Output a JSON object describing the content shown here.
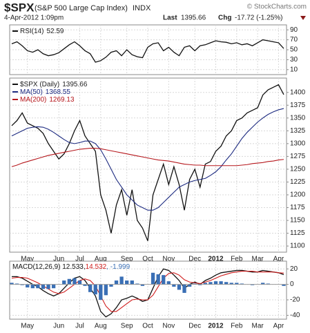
{
  "header": {
    "symbol": "$SPX",
    "description": "(S&P 500 Large Cap Index)",
    "exchange": "INDX",
    "credit": "© StockCharts.com",
    "date": "4-Apr-2012 1:09pm",
    "last_label": "Last",
    "last": "1395.66",
    "chg_label": "Chg",
    "chg": "-17.72 (-1.25%)"
  },
  "chart_data": [
    {
      "type": "line",
      "ylim": [
        0,
        100
      ],
      "yticks": [
        90,
        70,
        50,
        30,
        10
      ],
      "grid": true,
      "series": [
        {
          "name": "RSI(14)",
          "color": "#111111",
          "values": [
            62,
            66,
            58,
            48,
            45,
            50,
            42,
            38,
            40,
            44,
            52,
            60,
            66,
            58,
            48,
            42,
            25,
            28,
            35,
            45,
            48,
            38,
            50,
            40,
            36,
            34,
            55,
            62,
            64,
            48,
            55,
            45,
            38,
            55,
            58,
            48,
            58,
            60,
            64,
            68,
            66,
            65,
            62,
            64,
            60,
            62,
            58,
            64,
            70,
            68,
            66,
            64,
            52.59
          ]
        }
      ]
    },
    {
      "type": "line",
      "ylim": [
        1088,
        1428
      ],
      "yticks": [
        1100,
        1125,
        1150,
        1175,
        1200,
        1225,
        1250,
        1275,
        1300,
        1325,
        1350,
        1375,
        1400
      ],
      "grid": true,
      "categories": [
        null,
        null,
        null,
        "May",
        null,
        null,
        null,
        null,
        null,
        "Jun",
        null,
        null,
        null,
        "Jul",
        null,
        null,
        null,
        "Aug",
        null,
        null,
        null,
        null,
        "Sep",
        null,
        null,
        null,
        "Oct",
        null,
        null,
        null,
        "Nov",
        null,
        null,
        null,
        null,
        "Dec",
        null,
        null,
        null,
        "2012",
        null,
        null,
        null,
        "Feb",
        null,
        null,
        null,
        "Mar",
        null,
        null,
        null,
        "Apr",
        null
      ],
      "series": [
        {
          "name": "$SPX (Daily)",
          "color": "#111111",
          "values": [
            1335,
            1345,
            1360,
            1340,
            1335,
            1330,
            1320,
            1300,
            1285,
            1270,
            1280,
            1300,
            1325,
            1345,
            1315,
            1300,
            1285,
            1200,
            1170,
            1125,
            1180,
            1210,
            1160,
            1210,
            1150,
            1135,
            1110,
            1200,
            1230,
            1260,
            1220,
            1255,
            1220,
            1170,
            1230,
            1250,
            1215,
            1260,
            1265,
            1285,
            1295,
            1315,
            1325,
            1345,
            1350,
            1360,
            1365,
            1370,
            1395,
            1405,
            1410,
            1415,
            1395.66
          ]
        },
        {
          "name": "MA(50)",
          "color": "#1c2a80",
          "values": [
            1315,
            1320,
            1325,
            1330,
            1332,
            1333,
            1332,
            1328,
            1322,
            1315,
            1308,
            1302,
            1300,
            1302,
            1305,
            1305,
            1300,
            1288,
            1270,
            1250,
            1230,
            1215,
            1200,
            1190,
            1180,
            1175,
            1170,
            1170,
            1175,
            1185,
            1195,
            1205,
            1215,
            1220,
            1225,
            1228,
            1230,
            1232,
            1238,
            1245,
            1255,
            1268,
            1280,
            1295,
            1310,
            1322,
            1332,
            1342,
            1350,
            1357,
            1362,
            1366,
            1368.55
          ]
        },
        {
          "name": "MA(200)",
          "color": "#b5161b",
          "values": [
            1255,
            1258,
            1262,
            1265,
            1268,
            1271,
            1274,
            1277,
            1279,
            1281,
            1283,
            1285,
            1287,
            1289,
            1290,
            1291,
            1291,
            1290,
            1288,
            1286,
            1284,
            1282,
            1280,
            1278,
            1276,
            1274,
            1272,
            1270,
            1268,
            1267,
            1266,
            1264,
            1262,
            1260,
            1259,
            1258,
            1258,
            1257,
            1257,
            1257,
            1257,
            1257,
            1257,
            1257,
            1258,
            1259,
            1261,
            1262,
            1263,
            1265,
            1266,
            1268,
            1269.13
          ]
        }
      ]
    },
    {
      "type": "line",
      "ylim": [
        -45,
        30
      ],
      "yticks": [
        20,
        0,
        -20,
        -40
      ],
      "grid": true,
      "legend_parts": [
        "MACD(12,26,9) 12.533,",
        "14.532",
        ", -1.999"
      ],
      "categories": [
        null,
        null,
        null,
        "May",
        null,
        null,
        null,
        null,
        null,
        "Jun",
        null,
        null,
        null,
        "Jul",
        null,
        null,
        null,
        "Aug",
        null,
        null,
        null,
        null,
        "Sep",
        null,
        null,
        null,
        "Oct",
        null,
        null,
        null,
        "Nov",
        null,
        null,
        null,
        null,
        "Dec",
        null,
        null,
        null,
        "2012",
        null,
        null,
        null,
        "Feb",
        null,
        null,
        null,
        "Mar",
        null,
        null,
        null,
        "Apr",
        null
      ],
      "series": [
        {
          "color": "#111111",
          "values": [
            10,
            10,
            8,
            4,
            0,
            -3,
            -8,
            -12,
            -15,
            -12,
            -5,
            2,
            8,
            10,
            5,
            -5,
            -15,
            -35,
            -42,
            -38,
            -30,
            -20,
            -18,
            -15,
            -18,
            -22,
            -20,
            -5,
            10,
            20,
            18,
            12,
            5,
            -5,
            0,
            3,
            0,
            5,
            8,
            12,
            15,
            16,
            17,
            18,
            18,
            17,
            16,
            16,
            18,
            17,
            16,
            15,
            12.533
          ]
        },
        {
          "color": "#d01c1c",
          "values": [
            8,
            9,
            9,
            8,
            5,
            2,
            -2,
            -6,
            -10,
            -12,
            -10,
            -5,
            0,
            5,
            7,
            5,
            -2,
            -15,
            -28,
            -35,
            -35,
            -30,
            -25,
            -20,
            -19,
            -20,
            -20,
            -14,
            -3,
            8,
            14,
            15,
            12,
            6,
            3,
            2,
            1,
            3,
            5,
            8,
            11,
            13,
            15,
            16,
            17,
            17,
            17,
            16,
            16,
            16,
            16,
            15,
            14.532
          ]
        },
        {
          "type": "bar",
          "color": "#3a6fb5",
          "values": [
            2,
            1,
            -1,
            -4,
            -5,
            -5,
            -6,
            -6,
            -5,
            0,
            5,
            7,
            8,
            5,
            -2,
            -10,
            -13,
            -20,
            -14,
            -3,
            5,
            10,
            5,
            5,
            1,
            -2,
            0,
            15,
            13,
            12,
            4,
            -3,
            -7,
            -11,
            -3,
            1,
            -1,
            2,
            3,
            4,
            4,
            3,
            2,
            2,
            1,
            0,
            -1,
            0,
            2,
            1,
            0,
            0,
            -1.999
          ]
        }
      ]
    }
  ]
}
